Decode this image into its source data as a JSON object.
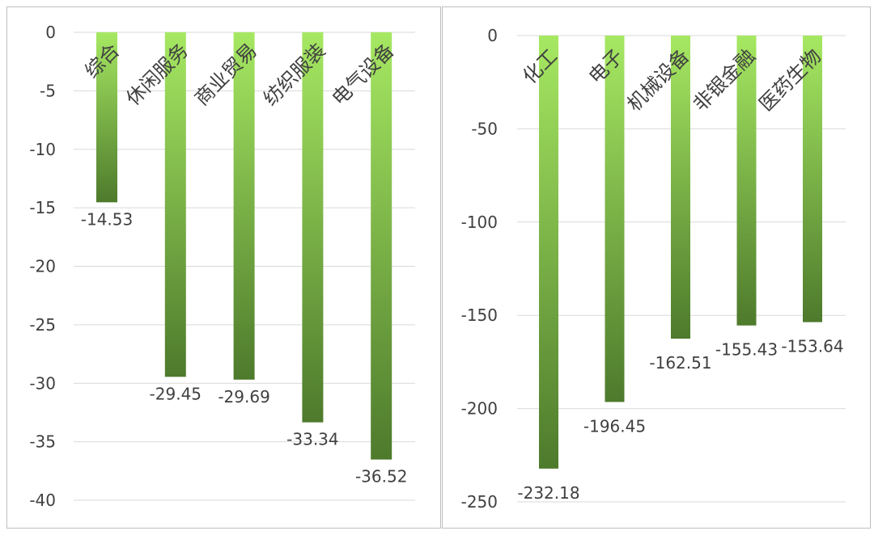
{
  "colors": {
    "bar_top": "#A6E862",
    "bar_bottom": "#4E7A2C",
    "grid": "#D9D9D9",
    "text": "#404040"
  },
  "chart_data": [
    {
      "type": "bar",
      "categories": [
        "综合",
        "休闲服务",
        "商业贸易",
        "纺织服装",
        "电气设备"
      ],
      "values": [
        -14.53,
        -29.45,
        -29.69,
        -33.34,
        -36.52
      ],
      "data_labels": [
        "-14.53",
        "-29.45",
        "-29.69",
        "-33.34",
        "-36.52"
      ],
      "yticks": [
        "0",
        "-5",
        "-10",
        "-15",
        "-20",
        "-25",
        "-30",
        "-35",
        "-40"
      ],
      "ylim": [
        -40,
        0
      ],
      "grid": true,
      "legend": "none"
    },
    {
      "type": "bar",
      "categories": [
        "化工",
        "电子",
        "机械设备",
        "非银金融",
        "医药生物"
      ],
      "values": [
        -232.18,
        -196.45,
        -162.51,
        -155.43,
        -153.64
      ],
      "data_labels": [
        "-232.18",
        "-196.45",
        "-162.51",
        "-155.43",
        "-153.64"
      ],
      "yticks": [
        "0",
        "-50",
        "-100",
        "-150",
        "-200",
        "-250"
      ],
      "ylim": [
        -250,
        0
      ],
      "grid": true,
      "legend": "none"
    }
  ]
}
